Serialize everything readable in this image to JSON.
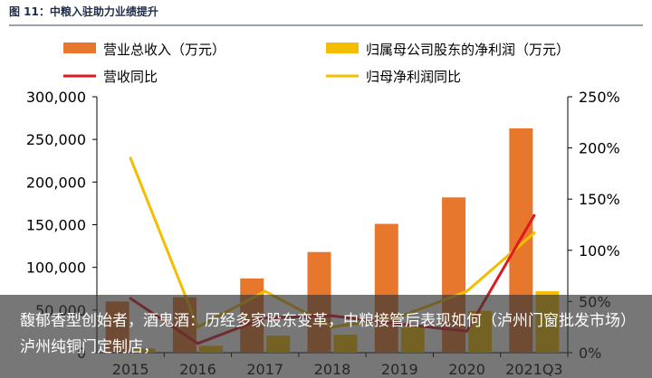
{
  "figure_title": "图 11：中粮入驻助力业绩提升",
  "caption": "馥郁香型创始者，酒鬼酒：历经多家股东变革，中粮接管后表现如何（泸州门窗批发市场）泸州纯铜门定制店，",
  "colors": {
    "revenue": "#E8772E",
    "net_profit": "#F5BD00",
    "revenue_yoy": "#E0191F",
    "profit_yoy": "#F5BD00",
    "axis": "#000000",
    "title_rule": "#9aa3ad",
    "caption_overlay": "#373737"
  },
  "chart_data": {
    "type": "bar",
    "categories": [
      "2015",
      "2016",
      "2017",
      "2018",
      "2019",
      "2020",
      "2021Q3"
    ],
    "y_left": {
      "range": [
        0,
        300000
      ],
      "ticks": [
        "0",
        "50,000",
        "100,000",
        "150,000",
        "200,000",
        "250,000",
        "300,000"
      ]
    },
    "y_right": {
      "range": [
        0,
        250
      ],
      "unit": "%",
      "ticks": [
        "0%",
        "50%",
        "100%",
        "150%",
        "200%",
        "250%"
      ]
    },
    "series": [
      {
        "name": "营业总收入（万元）",
        "kind": "bar",
        "axis": "left",
        "values": [
          60000,
          65000,
          87000,
          118000,
          151000,
          182000,
          263000
        ]
      },
      {
        "name": "归属母公司股东的净利润（万元）",
        "kind": "bar",
        "axis": "left",
        "values": [
          5000,
          8000,
          20000,
          21000,
          30000,
          49000,
          72000
        ]
      },
      {
        "name": "营收同比",
        "kind": "line",
        "axis": "right",
        "values": [
          53,
          9,
          34,
          36,
          28,
          21,
          134
        ]
      },
      {
        "name": "归母净利润同比",
        "kind": "line",
        "axis": "right",
        "values": [
          190,
          25,
          60,
          25,
          35,
          60,
          117
        ]
      }
    ],
    "legend_position": "top",
    "grid": false
  }
}
